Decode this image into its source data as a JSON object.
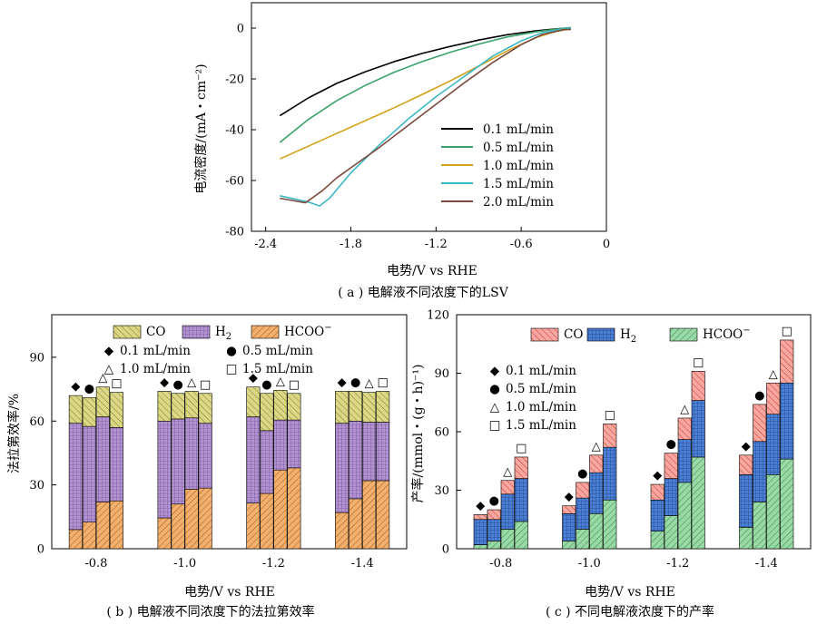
{
  "chart_data": [
    {
      "type": "line",
      "caption": "( a ) 电解液不同浓度下的LSV",
      "xlabel": "电势/V vs RHE",
      "ylabel": "电流密度/(mA・cm⁻²)",
      "xlim": [
        -2.5,
        0
      ],
      "ylim": [
        -80,
        10
      ],
      "xticks": [
        "-2.4",
        "-1.8",
        "-1.2",
        "-0.6",
        "0"
      ],
      "xtick_values": [
        -2.4,
        -1.8,
        -1.2,
        -0.6,
        0
      ],
      "yticks": [
        "0",
        "-20",
        "-40",
        "-60",
        "-80"
      ],
      "ytick_values": [
        0,
        -20,
        -40,
        -60,
        -80
      ],
      "legend_position": "lower-right",
      "series": [
        {
          "name": "0.1 mL/min",
          "color": "#000000",
          "x": [
            -2.3,
            -2.1,
            -1.9,
            -1.7,
            -1.5,
            -1.3,
            -1.1,
            -0.9,
            -0.7,
            -0.5,
            -0.35,
            -0.25
          ],
          "y": [
            -34.5,
            -27.5,
            -21.8,
            -17.2,
            -13.3,
            -10.0,
            -7.2,
            -4.7,
            -2.6,
            -1.1,
            -0.3,
            0.1
          ]
        },
        {
          "name": "0.5 mL/min",
          "color": "#3aa36a",
          "x": [
            -2.3,
            -2.1,
            -1.9,
            -1.7,
            -1.5,
            -1.3,
            -1.1,
            -0.9,
            -0.7,
            -0.5,
            -0.35,
            -0.25
          ],
          "y": [
            -45.0,
            -36.0,
            -28.6,
            -22.6,
            -17.5,
            -13.2,
            -9.5,
            -6.3,
            -3.5,
            -1.5,
            -0.4,
            0.2
          ]
        },
        {
          "name": "1.0 mL/min",
          "color": "#d4a017",
          "x": [
            -2.3,
            -2.1,
            -1.9,
            -1.7,
            -1.5,
            -1.3,
            -1.1,
            -0.9,
            -0.7,
            -0.5,
            -0.35,
            -0.25
          ],
          "y": [
            -51.5,
            -46.5,
            -41.5,
            -36.5,
            -31.5,
            -26.2,
            -20.8,
            -15.0,
            -9.0,
            -3.8,
            -1.2,
            -0.3
          ]
        },
        {
          "name": "1.5 mL/min",
          "color": "#3cb7c4",
          "x": [
            -2.3,
            -2.1,
            -2.02,
            -1.95,
            -1.8,
            -1.6,
            -1.4,
            -1.2,
            -1.0,
            -0.8,
            -0.6,
            -0.45,
            -0.3,
            -0.25
          ],
          "y": [
            -66.0,
            -68.5,
            -70.0,
            -67.0,
            -57.0,
            -46.0,
            -36.0,
            -27.0,
            -19.0,
            -11.0,
            -5.0,
            -1.8,
            -0.3,
            0.0
          ]
        },
        {
          "name": "2.0 mL/min",
          "color": "#7a4a3d",
          "x": [
            -2.3,
            -2.2,
            -2.12,
            -2.0,
            -1.9,
            -1.8,
            -1.6,
            -1.4,
            -1.2,
            -1.0,
            -0.8,
            -0.6,
            -0.45,
            -0.3,
            -0.25
          ],
          "y": [
            -67.0,
            -68.0,
            -68.8,
            -64.0,
            -59.0,
            -55.0,
            -47.0,
            -38.5,
            -30.0,
            -21.5,
            -13.5,
            -6.5,
            -2.5,
            -0.6,
            -0.5
          ]
        }
      ]
    },
    {
      "type": "bar",
      "stacked": true,
      "caption": "( b ) 电解液不同浓度下的法拉第效率",
      "xlabel": "电势/V vs RHE",
      "ylabel": "法拉第效率/%",
      "ylim": [
        0,
        110
      ],
      "yticks": [
        "0",
        "30",
        "60",
        "90"
      ],
      "ytick_values": [
        0,
        30,
        60,
        90
      ],
      "categories": [
        "-0.8",
        "-1.0",
        "-1.2",
        "-1.4"
      ],
      "flow_rates": [
        "0.1 mL/min",
        "0.5 mL/min",
        "1.0 mL/min",
        "1.5 mL/min"
      ],
      "series": [
        {
          "name": "HCOO⁻",
          "values": [
            [
              9,
              12.5,
              22,
              22.5
            ],
            [
              14.5,
              21,
              28,
              28.5
            ],
            [
              21.5,
              26,
              37,
              38
            ],
            [
              17,
              23.5,
              32,
              32
            ]
          ]
        },
        {
          "name": "H2",
          "values": [
            [
              50,
              45,
              40,
              34.5
            ],
            [
              45.5,
              40,
              33.5,
              30.5
            ],
            [
              40.5,
              29.5,
              23.5,
              22.5
            ],
            [
              42,
              36.5,
              27.5,
              27.5
            ]
          ]
        },
        {
          "name": "CO",
          "values": [
            [
              13,
              13.5,
              14,
              16.5
            ],
            [
              14,
              12,
              12.5,
              14
            ],
            [
              14,
              17.5,
              14,
              12.5
            ],
            [
              15,
              14,
              14,
              14.5
            ]
          ]
        }
      ],
      "legend": {
        "products": [
          {
            "name_main": "CO",
            "name_sub": "",
            "name_sup": "",
            "color": "#cfca6a"
          },
          {
            "name_main": "H",
            "name_sub": "2",
            "name_sup": "",
            "color": "#b292d1"
          },
          {
            "name_main": "HCOO",
            "name_sub": "",
            "name_sup": "−",
            "color": "#f2b06e"
          }
        ],
        "markers": [
          {
            "symbol": "◆",
            "label": "0.1 mL/min"
          },
          {
            "symbol": "●",
            "label": "0.5 mL/min"
          },
          {
            "symbol": "△",
            "label": "1.0 mL/min"
          },
          {
            "symbol": "□",
            "label": "1.5 mL/min"
          }
        ]
      }
    },
    {
      "type": "bar",
      "stacked": true,
      "caption": "( c ) 不同电解液浓度下的产率",
      "xlabel": "电势/V vs RHE",
      "ylabel": "产率/(mmol・(g・h)⁻¹)",
      "ylim": [
        0,
        120
      ],
      "yticks": [
        "0",
        "30",
        "60",
        "90",
        "120"
      ],
      "ytick_values": [
        0,
        30,
        60,
        90,
        120
      ],
      "categories": [
        "-0.8",
        "-1.0",
        "-1.2",
        "-1.4"
      ],
      "flow_rates": [
        "0.1 mL/min",
        "0.5 mL/min",
        "1.0 mL/min",
        "1.5 mL/min"
      ],
      "series": [
        {
          "name": "HCOO⁻",
          "values": [
            [
              2,
              4,
              10,
              14
            ],
            [
              4,
              10,
              18,
              25
            ],
            [
              9,
              17,
              34,
              47
            ],
            [
              11,
              24,
              38,
              46
            ]
          ]
        },
        {
          "name": "H2",
          "values": [
            [
              13,
              11,
              18,
              22
            ],
            [
              14,
              16,
              21,
              27
            ],
            [
              16,
              19,
              22,
              29
            ],
            [
              27,
              31,
              31,
              39
            ]
          ]
        },
        {
          "name": "CO",
          "values": [
            [
              2.5,
              5,
              7,
              11
            ],
            [
              4,
              8,
              9,
              12
            ],
            [
              8,
              13,
              11,
              15
            ],
            [
              10,
              19,
              16,
              22
            ]
          ]
        }
      ],
      "legend": {
        "products": [
          {
            "name_main": "CO",
            "name_sub": "",
            "name_sup": "",
            "color": "#f2938a"
          },
          {
            "name_main": "H",
            "name_sub": "2",
            "name_sup": "",
            "color": "#4a7fd4"
          },
          {
            "name_main": "HCOO",
            "name_sub": "",
            "name_sup": "−",
            "color": "#8bd39a"
          }
        ],
        "markers": [
          {
            "symbol": "◆",
            "label": "0.1 mL/min"
          },
          {
            "symbol": "●",
            "label": "0.5 mL/min"
          },
          {
            "symbol": "△",
            "label": "1.0 mL/min"
          },
          {
            "symbol": "□",
            "label": "1.5 mL/min"
          }
        ]
      }
    }
  ]
}
